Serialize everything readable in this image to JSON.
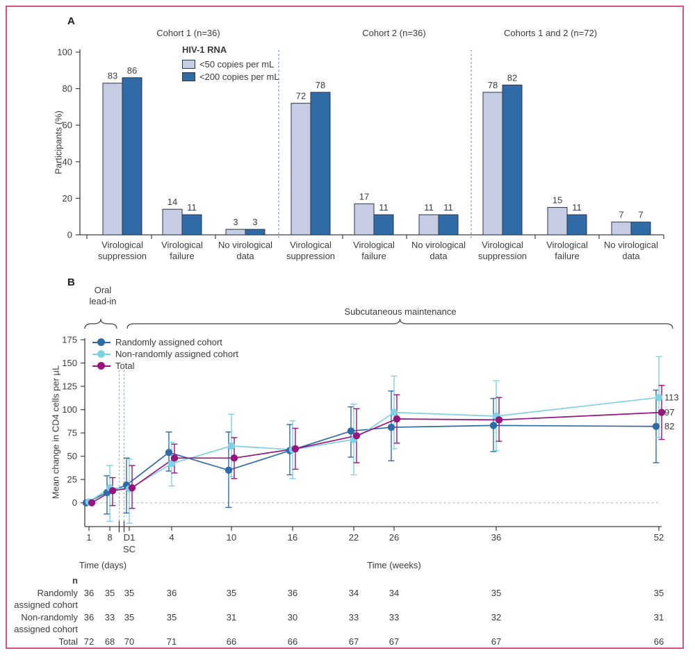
{
  "figure": {
    "panel_a": "A",
    "panel_b": "B"
  },
  "colors": {
    "frame_pink": "#d0547c",
    "axis": "#3f3f3f",
    "bar_outline": "#2b3648",
    "separator_blue": "#6f96ba",
    "zero_line_gray": "#a8b9c2",
    "break_line_gray": "#8fa3ad"
  },
  "chart_data": [
    {
      "type": "bar",
      "panel": "A",
      "group_titles": [
        "Cohort 1 (n=36)",
        "Cohort 2 (n=36)",
        "Cohorts 1 and 2 (n=72)"
      ],
      "categories": [
        "Virological suppression",
        "Virological failure",
        "No virological data"
      ],
      "legend_title": "HIV-1 RNA",
      "series": [
        {
          "name": "<50 copies per mL",
          "color": "#c7cce5",
          "values": [
            [
              83,
              14,
              3
            ],
            [
              72,
              17,
              11
            ],
            [
              78,
              15,
              7
            ]
          ]
        },
        {
          "name": "<200 copies per mL",
          "color": "#2f6ba7",
          "values": [
            [
              86,
              11,
              3
            ],
            [
              78,
              11,
              11
            ],
            [
              82,
              11,
              7
            ]
          ]
        }
      ],
      "ylabel": "Participants (%)",
      "yticks": [
        0,
        20,
        40,
        60,
        80,
        100
      ],
      "ylim": [
        0,
        100
      ],
      "grid": false,
      "legend_position": "top-left-inside"
    },
    {
      "type": "line",
      "panel": "B",
      "ylabel": "Mean change in CD4 cells per µL",
      "yticks": [
        0,
        25,
        50,
        75,
        100,
        125,
        150,
        175
      ],
      "ylim": [
        -26,
        175
      ],
      "x_categories": [
        "1",
        "8",
        "D1",
        "4",
        "10",
        "16",
        "22",
        "26",
        "36",
        "52"
      ],
      "sc_sublabel": "SC",
      "xlabel_days": "Time (days)",
      "xlabel_weeks": "Time (weeks)",
      "phase": {
        "oral_lines": [
          "Oral",
          "lead-in"
        ],
        "maintenance": "Subcutaneous maintenance"
      },
      "zero_reference_line": 0,
      "series": [
        {
          "name": "Randomly assigned cohort",
          "color": "#2f6ba7",
          "end_label": "82",
          "values": [
            0,
            11,
            19,
            54,
            35,
            56,
            77,
            81,
            83,
            82
          ],
          "err_lo": [
            -2,
            -12,
            -11,
            34,
            -5,
            30,
            49,
            45,
            55,
            43
          ],
          "err_hi": [
            2,
            29,
            48,
            76,
            76,
            84,
            103,
            120,
            112,
            121
          ]
        },
        {
          "name": "Non-randomly assigned cohort",
          "color": "#7ed2e4",
          "end_label": "113",
          "values": [
            1,
            16,
            15,
            42,
            61,
            57,
            68,
            97,
            93,
            113
          ],
          "err_lo": [
            -2,
            -20,
            -22,
            18,
            28,
            26,
            30,
            58,
            56,
            70
          ],
          "err_hi": [
            3,
            40,
            47,
            65,
            95,
            88,
            106,
            136,
            131,
            157
          ]
        },
        {
          "name": "Total",
          "color": "#97157f",
          "end_label": "97",
          "values": [
            0,
            13,
            16,
            48,
            48,
            58,
            72,
            90,
            89,
            97
          ],
          "err_lo": [
            -1,
            -3,
            -6,
            32,
            26,
            36,
            43,
            64,
            66,
            68
          ],
          "err_hi": [
            2,
            27,
            40,
            63,
            70,
            80,
            101,
            116,
            113,
            126
          ]
        }
      ]
    }
  ],
  "table": {
    "header": "n",
    "rows": [
      {
        "label_lines": [
          "Randomly",
          "assigned cohort"
        ],
        "values": [
          36,
          35,
          35,
          36,
          35,
          36,
          34,
          34,
          35,
          35
        ]
      },
      {
        "label_lines": [
          "Non-randomly",
          "assigned cohort"
        ],
        "values": [
          36,
          33,
          35,
          35,
          31,
          30,
          33,
          33,
          32,
          31
        ]
      },
      {
        "label_lines": [
          "Total"
        ],
        "values": [
          72,
          68,
          70,
          71,
          66,
          66,
          67,
          67,
          67,
          66
        ]
      }
    ]
  }
}
